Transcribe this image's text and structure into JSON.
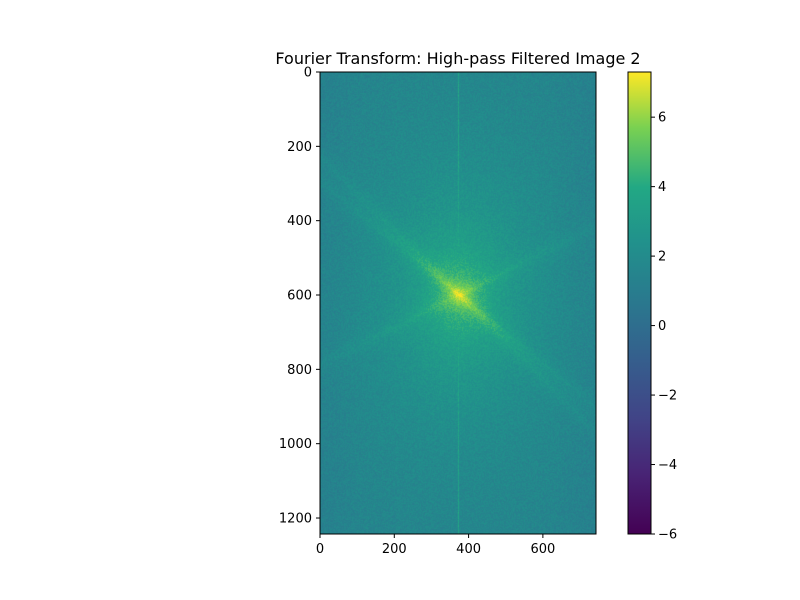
{
  "chart_data": {
    "type": "heatmap",
    "title": "Fourier Transform: High-pass Filtered Image 2",
    "xlabel": "",
    "ylabel": "",
    "xlim": [
      0,
      743
    ],
    "ylim": [
      1243,
      0
    ],
    "xticks": [
      0,
      200,
      400,
      600
    ],
    "yticks": [
      0,
      200,
      400,
      600,
      800,
      1000,
      1200
    ],
    "xtick_labels": [
      "0",
      "200",
      "400",
      "600"
    ],
    "ytick_labels": [
      "0",
      "200",
      "400",
      "600",
      "800",
      "1000",
      "1200"
    ],
    "colorbar": {
      "range": [
        -6,
        7.3
      ],
      "ticks": [
        -6,
        -4,
        -2,
        0,
        2,
        4,
        6
      ],
      "tick_labels": [
        "−6",
        "−4",
        "−2",
        "0",
        "2",
        "4",
        "6"
      ],
      "colormap": "viridis"
    },
    "field": {
      "background_level": 1.4,
      "peak_level": 5.0,
      "peak_center": [
        375,
        600
      ],
      "vertical_line_x": 373,
      "vertical_line_level": 3.6,
      "streak_slopes": [
        -0.5,
        1.0,
        0.82
      ]
    }
  },
  "colors": {
    "axes": "#000000",
    "background": "#ffffff"
  }
}
